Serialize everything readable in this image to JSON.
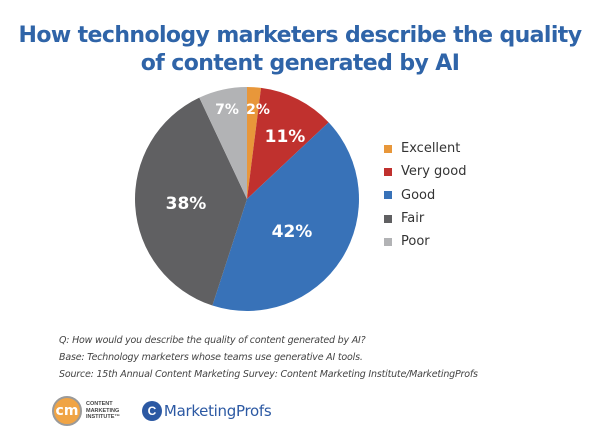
{
  "title": {
    "line1": "How technology marketers describe the quality",
    "line2": "of content generated by AI"
  },
  "chart_data": {
    "type": "pie",
    "title": "How technology marketers describe the quality of content generated by AI",
    "categories": [
      "Excellent",
      "Very good",
      "Good",
      "Fair",
      "Poor"
    ],
    "values": [
      2,
      11,
      42,
      38,
      7
    ],
    "labels": [
      "2%",
      "11%",
      "42%",
      "38%",
      "7%"
    ],
    "colors": [
      "#e8973a",
      "#c0312e",
      "#3872b8",
      "#606062",
      "#b2b3b5"
    ],
    "legend_position": "right",
    "start_angle_deg": 0,
    "direction": "clockwise"
  },
  "legend": {
    "items": [
      {
        "label": "Excellent",
        "color": "#e8973a"
      },
      {
        "label": "Very good",
        "color": "#c0312e"
      },
      {
        "label": "Good",
        "color": "#3872b8"
      },
      {
        "label": "Fair",
        "color": "#606062"
      },
      {
        "label": "Poor",
        "color": "#b2b3b5"
      }
    ]
  },
  "notes": {
    "question": "Q: How would you describe the quality of content generated by AI?",
    "base": "Base: Technology marketers whose teams use generative AI tools.",
    "source": "Source: 15th Annual Content Marketing Survey: Content Marketing Institute/MarketingProfs"
  },
  "logos": {
    "cmi_mark": "cm",
    "cmi_line1": "CONTENT",
    "cmi_line2": "MARKETING",
    "cmi_line3": "INSTITUTE™",
    "mp_mark": "C",
    "mp_name": "MarketingProfs"
  }
}
